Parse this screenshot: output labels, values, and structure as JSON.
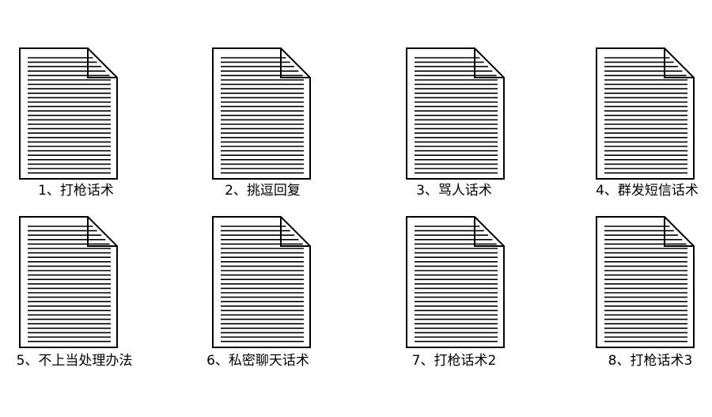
{
  "files": [
    {
      "label": "1、打枪话术",
      "icon": "document-icon"
    },
    {
      "label": "2、挑逗回复",
      "icon": "document-icon"
    },
    {
      "label": "3、骂人话术",
      "icon": "document-icon"
    },
    {
      "label": "4、群发短信话术",
      "icon": "document-icon"
    },
    {
      "label": "5、不上当处理办法",
      "icon": "document-icon"
    },
    {
      "label": "6、私密聊天话术",
      "icon": "document-icon"
    },
    {
      "label": "7、打枪话术2",
      "icon": "document-icon"
    },
    {
      "label": "8、打枪话术3",
      "icon": "document-icon"
    }
  ]
}
